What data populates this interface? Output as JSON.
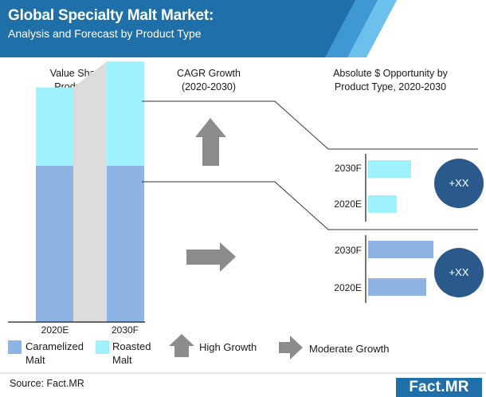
{
  "header": {
    "title": "Global Specialty Malt Market:",
    "subtitle": "Analysis and Forecast by Product Type"
  },
  "colors": {
    "header_bg": "#1f6fa8",
    "caramelized": "#8db4e2",
    "roasted": "#9ff1fb",
    "bubble": "#2a5a8c",
    "arrow": "#8c8c8c"
  },
  "sections": {
    "value_share": "Value Share by Product Type",
    "cagr": "CAGR Growth (2020-2030)",
    "opportunity": "Absolute $ Opportunity by Product Type, 2020-2030"
  },
  "chart_data": [
    {
      "type": "bar",
      "stacked": true,
      "title": "Value Share by Product Type",
      "categories": [
        "2020E",
        "2030F"
      ],
      "series": [
        {
          "name": "Caramelized Malt",
          "values": [
            60,
            60
          ]
        },
        {
          "name": "Roasted Malt",
          "values": [
            30,
            40
          ]
        }
      ],
      "ylim": [
        0,
        100
      ]
    },
    {
      "type": "bar",
      "orientation": "horizontal",
      "title": "Absolute $ Opportunity by Product Type, 2020-2030",
      "groups": [
        {
          "name": "Roasted Malt",
          "categories": [
            "2030F",
            "2020E"
          ],
          "values": [
            54,
            36
          ],
          "opportunity_label": "+XX",
          "growth": "High Growth"
        },
        {
          "name": "Caramelized Malt",
          "categories": [
            "2030F",
            "2020E"
          ],
          "values": [
            82,
            73
          ],
          "opportunity_label": "+XX",
          "growth": "Moderate Growth"
        }
      ]
    }
  ],
  "legend": {
    "caramelized_line1": "Caramelized",
    "caramelized_line2": "Malt",
    "roasted_line1": "Roasted",
    "roasted_line2": "Malt",
    "high_growth": "High Growth",
    "moderate_growth": "Moderate Growth"
  },
  "footer": {
    "source": "Source: Fact.MR",
    "logo_left": "Fact",
    "logo_dot": ".",
    "logo_right": "MR"
  }
}
